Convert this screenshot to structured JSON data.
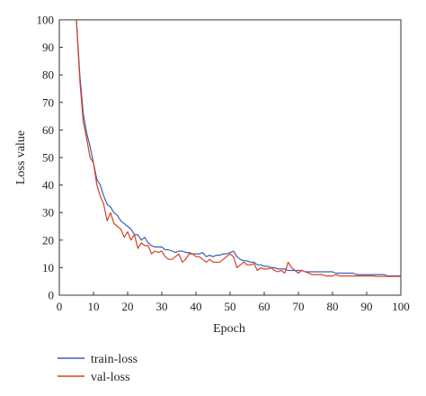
{
  "chart_data": {
    "type": "line",
    "title": "",
    "xlabel": "Epoch",
    "ylabel": "Loss value",
    "xlim": [
      0,
      100
    ],
    "ylim": [
      0,
      100
    ],
    "xticks": [
      "0",
      "10",
      "20",
      "30",
      "40",
      "50",
      "60",
      "70",
      "80",
      "90",
      "100"
    ],
    "yticks": [
      "0",
      "10",
      "20",
      "30",
      "40",
      "50",
      "60",
      "70",
      "80",
      "90",
      "100"
    ],
    "grid": false,
    "legend_position": "bottom-left, below plot",
    "colors": {
      "train_loss": "#3b5fb8",
      "val_loss": "#d9401f"
    },
    "series": [
      {
        "name": "train-loss",
        "color": "#3b5fb8",
        "x": [
          5,
          6,
          7,
          8,
          9,
          10,
          11,
          12,
          13,
          14,
          15,
          16,
          17,
          18,
          19,
          20,
          21,
          22,
          23,
          24,
          25,
          26,
          27,
          28,
          29,
          30,
          31,
          32,
          33,
          34,
          35,
          36,
          37,
          38,
          39,
          40,
          41,
          42,
          43,
          44,
          45,
          46,
          47,
          48,
          49,
          50,
          51,
          52,
          53,
          54,
          55,
          56,
          57,
          58,
          59,
          60,
          61,
          62,
          63,
          64,
          65,
          66,
          67,
          68,
          69,
          70,
          71,
          72,
          73,
          74,
          75,
          76,
          77,
          78,
          79,
          80,
          81,
          82,
          83,
          84,
          85,
          86,
          87,
          88,
          89,
          90,
          91,
          92,
          93,
          94,
          95,
          96,
          97,
          98,
          99,
          100
        ],
        "values": [
          100,
          80,
          66,
          59,
          54,
          48,
          42,
          40,
          36,
          33,
          32,
          30,
          29,
          27,
          26,
          25,
          24,
          22,
          22,
          20,
          21,
          19,
          18,
          17.5,
          17.5,
          17.5,
          16.5,
          16.5,
          16,
          15.5,
          16,
          16,
          15.5,
          15.5,
          15,
          15,
          15,
          15.5,
          14,
          14.5,
          14,
          14.5,
          14.5,
          15,
          15,
          15.5,
          16,
          14,
          13,
          12.5,
          12.5,
          12,
          12,
          11,
          11,
          10.5,
          10.5,
          10,
          10,
          9.5,
          9.5,
          9.5,
          9,
          9,
          9,
          9,
          9,
          8.5,
          8.5,
          8.5,
          8.5,
          8.5,
          8.5,
          8.5,
          8.5,
          8.5,
          8,
          8,
          8,
          8,
          8,
          8,
          7.5,
          7.5,
          7.5,
          7.5,
          7.5,
          7.5,
          7.5,
          7.5,
          7.5,
          7,
          7,
          7,
          7,
          7
        ]
      },
      {
        "name": "val-loss",
        "color": "#d9401f",
        "x": [
          5,
          6,
          7,
          8,
          9,
          10,
          11,
          12,
          13,
          14,
          15,
          16,
          17,
          18,
          19,
          20,
          21,
          22,
          23,
          24,
          25,
          26,
          27,
          28,
          29,
          30,
          31,
          32,
          33,
          34,
          35,
          36,
          37,
          38,
          39,
          40,
          41,
          42,
          43,
          44,
          45,
          46,
          47,
          48,
          49,
          50,
          51,
          52,
          53,
          54,
          55,
          56,
          57,
          58,
          59,
          60,
          61,
          62,
          63,
          64,
          65,
          66,
          67,
          68,
          69,
          70,
          71,
          72,
          73,
          74,
          75,
          76,
          77,
          78,
          79,
          80,
          81,
          82,
          83,
          84,
          85,
          86,
          87,
          88,
          89,
          90,
          91,
          92,
          93,
          94,
          95,
          96,
          97,
          98,
          99,
          100
        ],
        "values": [
          100,
          78,
          63,
          57,
          50,
          48,
          40,
          36,
          33,
          27,
          30,
          26,
          25,
          24,
          21,
          23,
          20,
          22,
          17,
          19,
          18,
          18,
          15,
          16,
          15.5,
          16,
          14,
          13,
          13,
          14,
          15,
          12,
          13,
          15,
          15,
          14,
          14,
          13,
          12,
          13,
          12,
          12,
          12,
          13,
          14,
          15,
          14,
          10,
          11,
          12,
          11,
          11,
          11.5,
          9,
          10,
          9.5,
          9.5,
          10,
          9,
          8.5,
          9,
          8,
          12,
          10,
          9,
          8,
          9,
          8.5,
          8,
          7.5,
          7.5,
          7.5,
          7.5,
          7,
          7,
          7,
          7.5,
          7,
          7,
          7,
          7,
          7,
          7,
          7,
          7,
          7,
          7,
          7,
          6.8,
          6.8,
          6.8,
          6.8,
          6.8,
          6.8,
          6.8,
          6.8
        ]
      }
    ]
  }
}
